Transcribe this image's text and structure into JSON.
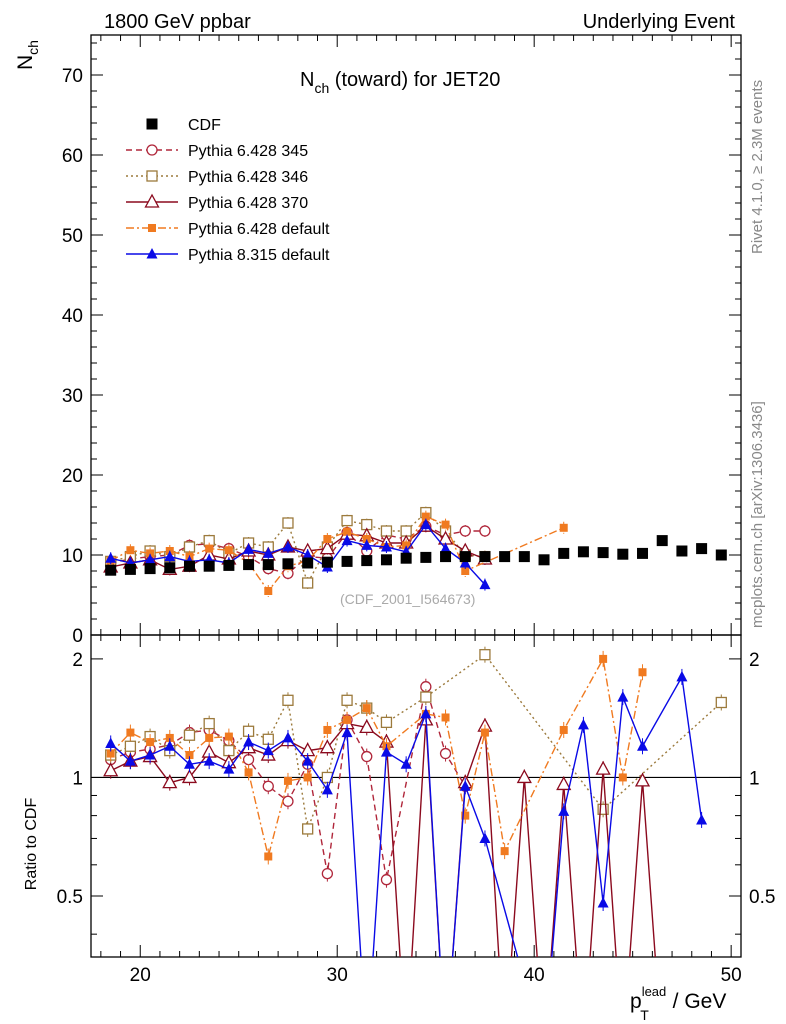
{
  "header": {
    "left": "1800 GeV ppbar",
    "right": "Underlying Event"
  },
  "side": {
    "rivet": "Rivet 4.1.0, ≥ 2.3M events",
    "mcplots": "mcplots.cern.ch [arXiv:1306.3436]"
  },
  "watermark": "(CDF_2001_I564673)",
  "axes": {
    "main_ylabel_base": "N",
    "main_ylabel_sub": "ch",
    "ratio_ylabel": "Ratio to CDF",
    "xlabel_base": "p",
    "xlabel_sub": "T",
    "xlabel_sup": "lead",
    "xlabel_unit": " / GeV"
  },
  "chart_data": {
    "type": "line",
    "title_base": "N",
    "title_sub": "ch",
    "title_rest": " (toward) for JET20",
    "xlim": [
      17.5,
      50.5
    ],
    "ylim": [
      0,
      75
    ],
    "ratio_ylim": [
      0.35,
      2.3
    ],
    "x_ticks": [
      20,
      30,
      40,
      50
    ],
    "y_ticks": [
      0,
      10,
      20,
      30,
      40,
      50,
      60,
      70
    ],
    "ratio_ticks": [
      0.5,
      1,
      2
    ],
    "data": {
      "name": "CDF",
      "color": "#000000",
      "x": [
        18.5,
        19.5,
        20.5,
        21.5,
        22.5,
        23.5,
        24.5,
        25.5,
        26.5,
        27.5,
        28.5,
        29.5,
        30.5,
        31.5,
        32.5,
        33.5,
        34.5,
        35.5,
        36.5,
        37.5,
        38.5,
        39.5,
        40.5,
        41.5,
        42.5,
        43.5,
        44.5,
        45.5,
        46.5,
        47.5,
        48.5,
        49.5
      ],
      "y": [
        8.1,
        8.2,
        8.3,
        8.4,
        8.6,
        8.6,
        8.7,
        8.8,
        8.8,
        8.9,
        9.0,
        9.1,
        9.2,
        9.3,
        9.4,
        9.6,
        9.7,
        9.8,
        9.8,
        9.8,
        9.8,
        9.8,
        9.4,
        10.2,
        10.4,
        10.3,
        10.1,
        10.2,
        11.8,
        10.5,
        10.8,
        10.0
      ]
    },
    "series": [
      {
        "name": "Pythia 6.428 345",
        "color": "#b0263a",
        "marker": "circle-open",
        "dash": "6,4",
        "x": [
          18.5,
          19.5,
          20.5,
          21.5,
          22.5,
          23.5,
          24.5,
          25.5,
          26.5,
          27.5,
          28.5,
          29.5,
          30.5,
          31.5,
          32.5,
          33.5,
          34.5,
          35.5,
          36.5,
          37.5
        ],
        "y": [
          9.0,
          9.5,
          9.8,
          10.0,
          11.2,
          11.4,
          10.8,
          9.8,
          8.3,
          7.7,
          9.8,
          9.6,
          12.8,
          10.5,
          12.5,
          12.0,
          13.6,
          12.5,
          13.0,
          13.0
        ],
        "ratio_x": [
          18.5,
          19.5,
          20.5,
          21.5,
          22.5,
          23.5,
          24.5,
          25.5,
          26.5,
          27.5,
          28.5,
          29.5,
          30.5,
          31.5,
          32.5,
          34.5,
          35.5,
          36.5
        ],
        "ratio_y": [
          1.11,
          1.16,
          1.18,
          1.21,
          1.3,
          1.32,
          1.24,
          1.11,
          0.95,
          0.87,
          1.08,
          0.57,
          1.4,
          1.13,
          0.55,
          1.7,
          1.15,
          0.95
        ]
      },
      {
        "name": "Pythia 6.428 346",
        "color": "#9c7a3c",
        "marker": "square-open",
        "dash": "2,3",
        "x": [
          18.5,
          19.5,
          20.5,
          21.5,
          22.5,
          23.5,
          24.5,
          25.5,
          26.5,
          27.5,
          28.5,
          29.5,
          30.5,
          31.5,
          32.5,
          33.5,
          34.5,
          35.5,
          36.5,
          37.5
        ],
        "y": [
          9.2,
          9.8,
          10.5,
          9.8,
          11.0,
          11.8,
          10.2,
          11.5,
          11.0,
          14.0,
          6.5,
          11.0,
          14.3,
          13.8,
          13.0,
          13.0,
          15.3,
          13.0,
          10.0,
          9.8
        ],
        "ratio_x": [
          18.5,
          19.5,
          20.5,
          21.5,
          22.5,
          23.5,
          24.5,
          25.5,
          26.5,
          27.5,
          28.5,
          29.5,
          30.5,
          31.5,
          32.5,
          34.5,
          37.5,
          43.5,
          49.5
        ],
        "ratio_y": [
          1.14,
          1.2,
          1.27,
          1.17,
          1.28,
          1.37,
          1.17,
          1.31,
          1.25,
          1.57,
          0.74,
          1.0,
          1.57,
          1.5,
          1.38,
          1.6,
          2.05,
          0.83,
          1.55
        ]
      },
      {
        "name": "Pythia 6.428 370",
        "color": "#8b0a1e",
        "marker": "triangle-open",
        "dash": "",
        "x": [
          18.5,
          19.5,
          20.5,
          21.5,
          22.5,
          23.5,
          24.5,
          25.5,
          26.5,
          27.5,
          28.5,
          29.5,
          30.5,
          31.5,
          32.5,
          33.5,
          34.5,
          35.5,
          36.5,
          37.5
        ],
        "y": [
          8.5,
          9.0,
          9.4,
          8.2,
          8.6,
          10.0,
          9.5,
          10.5,
          10.0,
          11.0,
          10.5,
          10.8,
          12.6,
          12.4,
          11.5,
          11.5,
          13.6,
          12.0,
          10.5,
          9.5
        ],
        "ratio_x": [
          18.5,
          19.5,
          20.5,
          21.5,
          22.5,
          23.5,
          24.5,
          25.5,
          26.5,
          27.5,
          28.5,
          29.5,
          30.5,
          31.5,
          32.5,
          33.5,
          34.5,
          35.5,
          36.5,
          37.5,
          38.5,
          39.5,
          40.5,
          41.5,
          42.5,
          43.5,
          44.5,
          45.5,
          46.5
        ],
        "ratio_y": [
          1.04,
          1.1,
          1.13,
          0.97,
          1.0,
          1.16,
          1.09,
          1.19,
          1.14,
          1.24,
          1.17,
          1.19,
          1.37,
          1.34,
          1.23,
          0.2,
          1.4,
          0.2,
          0.97,
          1.35,
          0.2,
          1.0,
          0.2,
          0.96,
          0.2,
          1.05,
          0.2,
          0.98,
          0.2
        ]
      },
      {
        "name": "Pythia 6.428 default",
        "color": "#f07a20",
        "marker": "square-filled-small",
        "dash": "8,3,2,3",
        "x": [
          18.5,
          19.5,
          20.5,
          21.5,
          22.5,
          23.5,
          24.5,
          25.5,
          26.5,
          27.5,
          28.5,
          29.5,
          30.5,
          31.5,
          32.5,
          33.5,
          34.5,
          35.5,
          36.5,
          41.5
        ],
        "y": [
          9.3,
          10.6,
          10.2,
          10.5,
          9.8,
          10.8,
          10.6,
          9.0,
          5.5,
          8.6,
          9.3,
          12.0,
          12.9,
          12.0,
          11.0,
          11.2,
          14.8,
          13.8,
          8.0,
          13.4
        ],
        "ratio_x": [
          18.5,
          19.5,
          20.5,
          21.5,
          22.5,
          23.5,
          24.5,
          25.5,
          26.5,
          27.5,
          28.5,
          29.5,
          30.5,
          31.5,
          32.5,
          34.5,
          35.5,
          36.5,
          37.5,
          38.5,
          41.5,
          43.5,
          44.5,
          45.5
        ],
        "ratio_y": [
          1.15,
          1.3,
          1.23,
          1.26,
          1.14,
          1.26,
          1.27,
          1.03,
          0.63,
          0.98,
          1.0,
          1.32,
          1.4,
          1.5,
          1.2,
          1.45,
          1.42,
          0.8,
          1.3,
          0.65,
          1.32,
          2.0,
          1.0,
          1.85
        ]
      },
      {
        "name": "Pythia 8.315 default",
        "color": "#0a0ae6",
        "marker": "triangle-filled",
        "dash": "",
        "x": [
          18.5,
          19.5,
          20.5,
          21.5,
          22.5,
          23.5,
          24.5,
          25.5,
          26.5,
          27.5,
          28.5,
          29.5,
          30.5,
          31.5,
          32.5,
          33.5,
          34.5,
          35.5,
          36.5,
          37.5
        ],
        "y": [
          9.6,
          9.0,
          9.4,
          9.8,
          9.2,
          9.4,
          9.0,
          10.7,
          10.2,
          11.0,
          10.0,
          8.5,
          11.8,
          11.2,
          11.0,
          10.4,
          13.8,
          10.8,
          9.0,
          6.3
        ],
        "ratio_x": [
          18.5,
          19.5,
          20.5,
          21.5,
          22.5,
          23.5,
          24.5,
          25.5,
          26.5,
          27.5,
          28.5,
          29.5,
          30.5,
          31.5,
          32.5,
          33.5,
          34.5,
          35.5,
          36.5,
          37.5,
          40.5,
          41.5,
          42.5,
          43.5,
          44.5,
          45.5,
          47.5,
          48.5
        ],
        "ratio_y": [
          1.22,
          1.1,
          1.14,
          1.2,
          1.08,
          1.1,
          1.05,
          1.23,
          1.17,
          1.26,
          1.1,
          0.93,
          1.3,
          0.2,
          1.16,
          1.08,
          1.45,
          0.2,
          0.95,
          0.7,
          0.2,
          0.82,
          1.36,
          0.48,
          1.6,
          1.2,
          1.8,
          0.78
        ]
      }
    ]
  }
}
